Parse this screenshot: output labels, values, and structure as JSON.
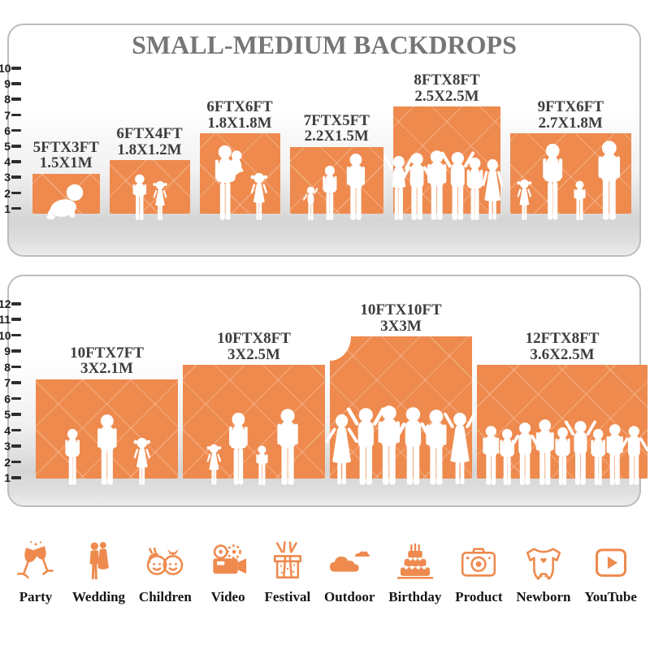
{
  "title": "SMALL-MEDIUM BACKDROPS",
  "accent_color": "#EE8A4E",
  "panels": [
    {
      "scale_max": 10,
      "items": [
        {
          "ft": "5FTX3FT",
          "m": "1.5X1M",
          "w": 5,
          "h": 3,
          "figures": [
            "baby"
          ]
        },
        {
          "ft": "6FTX4FT",
          "m": "1.8X1.2M",
          "w": 6,
          "h": 4,
          "figures": [
            "boy",
            "girl"
          ]
        },
        {
          "ft": "6FTX6FT",
          "m": "1.8X1.8M",
          "w": 6,
          "h": 6,
          "figures": [
            "mother",
            "girl"
          ]
        },
        {
          "ft": "7FTX5FT",
          "m": "2.2X1.5M",
          "w": 7,
          "h": 5,
          "figures": [
            "toddler",
            "woman",
            "man"
          ]
        },
        {
          "ft": "8FTX8FT",
          "m": "2.5X2.5M",
          "w": 8,
          "h": 8,
          "figures": [
            "woman-up",
            "man-akimbo",
            "man",
            "man-up",
            "woman",
            "dress"
          ]
        },
        {
          "ft": "9FTX6FT",
          "m": "2.7X1.8M",
          "w": 9,
          "h": 6,
          "figures": [
            "girl",
            "woman",
            "boy",
            "man"
          ]
        }
      ]
    },
    {
      "scale_max": 12,
      "items": [
        {
          "ft": "10FTX7FT",
          "m": "3X2.1M",
          "w": 10,
          "h": 7,
          "figures": [
            "woman",
            "man",
            "girl"
          ]
        },
        {
          "ft": "10FTX8FT",
          "m": "3X2.5M",
          "w": 10,
          "h": 8,
          "figures": [
            "girl",
            "woman",
            "boy",
            "man"
          ]
        },
        {
          "ft": "10FTX10FT",
          "m": "3X3M",
          "w": 10,
          "h": 10,
          "figures": [
            "dress-akimbo",
            "man-up",
            "man",
            "man-akimbo",
            "man",
            "dress-up"
          ]
        },
        {
          "ft": "12FTX8FT",
          "m": "3.6X2.5M",
          "w": 12,
          "h": 8,
          "figures": [
            "man",
            "woman",
            "man-akimbo",
            "man",
            "woman",
            "man-up",
            "woman",
            "man",
            "man-akimbo"
          ]
        }
      ]
    }
  ],
  "categories": [
    {
      "icon": "party-icon",
      "label": "Party"
    },
    {
      "icon": "wedding-icon",
      "label": "Wedding"
    },
    {
      "icon": "children-icon",
      "label": "Children"
    },
    {
      "icon": "video-icon",
      "label": "Video"
    },
    {
      "icon": "festival-icon",
      "label": "Festival"
    },
    {
      "icon": "outdoor-icon",
      "label": "Outdoor"
    },
    {
      "icon": "birthday-icon",
      "label": "Birthday"
    },
    {
      "icon": "product-icon",
      "label": "Product"
    },
    {
      "icon": "newborn-icon",
      "label": "Newborn"
    },
    {
      "icon": "youtube-icon",
      "label": "YouTube"
    }
  ]
}
